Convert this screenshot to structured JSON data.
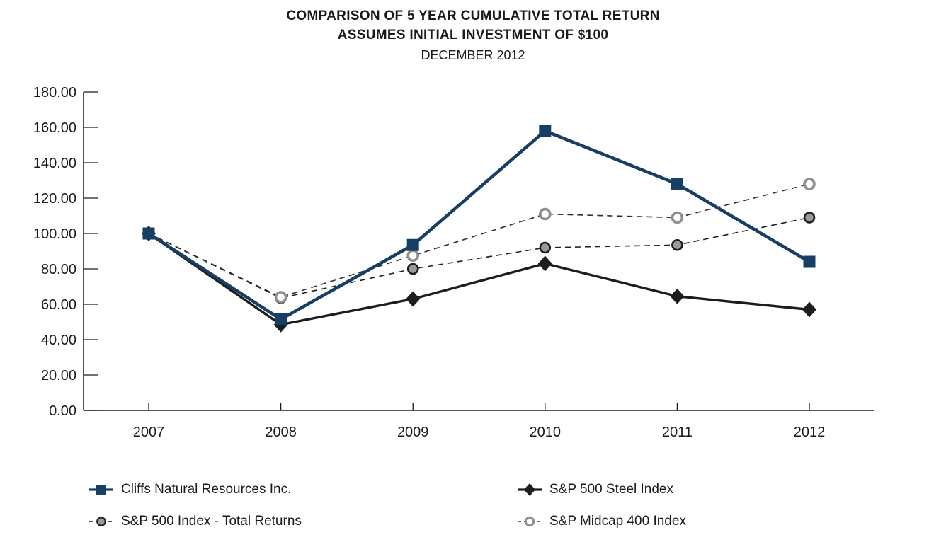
{
  "header": {
    "title": "COMPARISON OF 5 YEAR CUMULATIVE TOTAL RETURN",
    "subtitle": "ASSUMES INITIAL INVESTMENT OF $100",
    "date_line": "DECEMBER 2012"
  },
  "chart_data": {
    "type": "line",
    "title": "COMPARISON OF 5 YEAR CUMULATIVE TOTAL RETURN",
    "subtitle": "ASSUMES INITIAL INVESTMENT OF $100",
    "date_line": "DECEMBER 2012",
    "xlabel": "",
    "ylabel": "",
    "categories": [
      "2007",
      "2008",
      "2009",
      "2010",
      "2011",
      "2012"
    ],
    "series": [
      {
        "name": "Cliffs Natural Resources Inc.",
        "values": [
          100,
          51.5,
          93.5,
          158,
          128,
          84
        ],
        "color": "#173f66",
        "marker": "square",
        "line_style": "solid",
        "line_width": 4.5
      },
      {
        "name": "S&P 500 Steel Index",
        "values": [
          100,
          48.5,
          63,
          83,
          64.5,
          57
        ],
        "color": "#1d1d1d",
        "marker": "diamond",
        "line_style": "solid",
        "line_width": 3.4
      },
      {
        "name": "S&P 500 Index - Total Returns",
        "values": [
          100,
          63.5,
          80,
          92,
          93.5,
          109
        ],
        "color": "#1f1f1f",
        "marker": "circle",
        "marker_fill": "#9a9a9a",
        "marker_stroke": "#1d1d1d",
        "marker_stroke_width": 2.6,
        "line_style": "dashed",
        "line_width": 1.6
      },
      {
        "name": "S&P Midcap 400 Index",
        "values": [
          100,
          64,
          87.5,
          111,
          109,
          128
        ],
        "color": "#2e2e2e",
        "marker": "circle",
        "marker_fill": "#ffffff",
        "marker_stroke": "#8f8f8f",
        "marker_stroke_width": 3.6,
        "line_style": "dashed",
        "line_width": 1.6
      }
    ],
    "ylim": [
      0,
      180
    ],
    "y_tick_step": 20,
    "y_tick_decimals": 2,
    "grid": false,
    "legend_position": "bottom",
    "legend_columns": 2
  }
}
